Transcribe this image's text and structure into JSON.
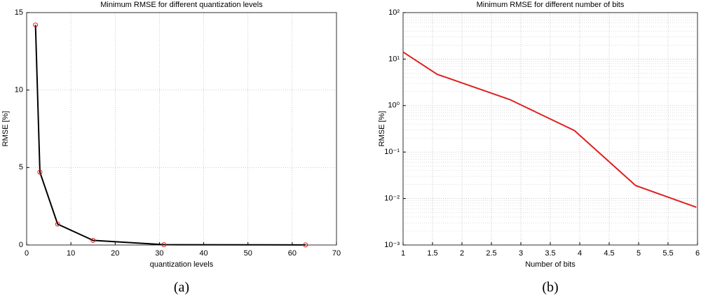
{
  "chart_data": [
    {
      "type": "line",
      "title": "Minimum RMSE for different quantization levels",
      "xlabel": "quantization levels",
      "ylabel": "RMSE [%]",
      "caption": "(a)",
      "x": [
        2,
        3,
        7,
        15,
        31,
        63
      ],
      "series": [
        {
          "color": "#000000",
          "marker_color": "#e02020",
          "values": [
            14.2,
            4.7,
            1.35,
            0.3,
            0.02,
            0.007
          ]
        }
      ],
      "xlim": [
        0,
        70
      ],
      "xticks": [
        0,
        10,
        20,
        30,
        40,
        50,
        60,
        70
      ],
      "ylim": [
        0,
        15
      ],
      "yticks": [
        0,
        5,
        10,
        15
      ],
      "grid": true,
      "yscale": "linear"
    },
    {
      "type": "line",
      "title": "Minimum RMSE for different number of bits",
      "xlabel": "Number of bits",
      "ylabel": "RMSE [%]",
      "caption": "(b)",
      "x": [
        1,
        1.58,
        2.81,
        3.91,
        4.95,
        5.98
      ],
      "series": [
        {
          "color": "#e02020",
          "values": [
            14.2,
            4.7,
            1.35,
            0.29,
            0.019,
            0.0065
          ]
        }
      ],
      "xlim": [
        1,
        6
      ],
      "xticks": [
        1,
        1.5,
        2,
        2.5,
        3,
        3.5,
        4,
        4.5,
        5,
        5.5,
        6
      ],
      "ylim": [
        0.001,
        100
      ],
      "yticks": [
        {
          "value": 0.001,
          "label": "10⁻³"
        },
        {
          "value": 0.01,
          "label": "10⁻²"
        },
        {
          "value": 0.1,
          "label": "10⁻¹"
        },
        {
          "value": 1,
          "label": "10⁰"
        },
        {
          "value": 10,
          "label": "10¹"
        },
        {
          "value": 100,
          "label": "10²"
        }
      ],
      "grid": true,
      "yscale": "log"
    }
  ]
}
